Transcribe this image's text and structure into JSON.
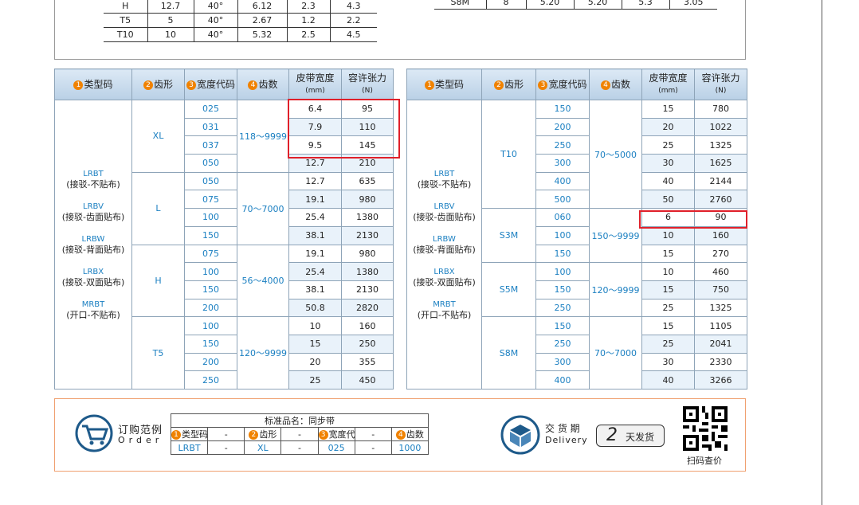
{
  "top_tables": [
    {
      "rows": [
        [
          "H",
          "12.7",
          "40°",
          "6.12",
          "2.3",
          "4.3"
        ],
        [
          "T5",
          "5",
          "40°",
          "2.67",
          "1.2",
          "2.2"
        ],
        [
          "T10",
          "10",
          "40°",
          "5.32",
          "2.5",
          "4.5"
        ]
      ]
    },
    {
      "rows": [
        [
          "S8M",
          "8",
          "5.20",
          "5.20",
          "5.3",
          "3.05"
        ]
      ]
    }
  ],
  "tables": [
    {
      "headers": [
        {
          "num": "1",
          "label": "类型码"
        },
        {
          "num": "2",
          "label": "齿形"
        },
        {
          "num": "3",
          "label": "宽度代码"
        },
        {
          "num": "4",
          "label": "齿数"
        },
        {
          "label": "皮带宽度",
          "unit": "(mm)"
        },
        {
          "label": "容许张力",
          "unit": "(N)"
        }
      ],
      "type_codes": [
        {
          "code": "LRBT",
          "desc": "(接驳-不贴布)"
        },
        {
          "code": "LRBV",
          "desc": "(接驳-齿面贴布)"
        },
        {
          "code": "LRBW",
          "desc": "(接驳-背面贴布)"
        },
        {
          "code": "LRBX",
          "desc": "(接驳-双面贴布)"
        },
        {
          "code": "MRBT",
          "desc": "(开口-不贴布)"
        }
      ],
      "groups": [
        {
          "tooth": "XL",
          "teeth": "118～9999",
          "rows": [
            [
              "025",
              "6.4",
              "95"
            ],
            [
              "031",
              "7.9",
              "110"
            ],
            [
              "037",
              "9.5",
              "145"
            ],
            [
              "050",
              "12.7",
              "210"
            ]
          ]
        },
        {
          "tooth": "L",
          "teeth": "70～7000",
          "rows": [
            [
              "050",
              "12.7",
              "635"
            ],
            [
              "075",
              "19.1",
              "980"
            ],
            [
              "100",
              "25.4",
              "1380"
            ],
            [
              "150",
              "38.1",
              "2130"
            ]
          ]
        },
        {
          "tooth": "H",
          "teeth": "56～4000",
          "rows": [
            [
              "075",
              "19.1",
              "980"
            ],
            [
              "100",
              "25.4",
              "1380"
            ],
            [
              "150",
              "38.1",
              "2130"
            ],
            [
              "200",
              "50.8",
              "2820"
            ]
          ]
        },
        {
          "tooth": "T5",
          "teeth": "120～9999",
          "rows": [
            [
              "100",
              "10",
              "160"
            ],
            [
              "150",
              "15",
              "250"
            ],
            [
              "200",
              "20",
              "355"
            ],
            [
              "250",
              "25",
              "450"
            ]
          ]
        }
      ]
    },
    {
      "headers": [
        {
          "num": "1",
          "label": "类型码"
        },
        {
          "num": "2",
          "label": "齿形"
        },
        {
          "num": "3",
          "label": "宽度代码"
        },
        {
          "num": "4",
          "label": "齿数"
        },
        {
          "label": "皮带宽度",
          "unit": "(mm)"
        },
        {
          "label": "容许张力",
          "unit": "(N)"
        }
      ],
      "type_codes": [
        {
          "code": "LRBT",
          "desc": "(接驳-不贴布)"
        },
        {
          "code": "LRBV",
          "desc": "(接驳-齿面贴布)"
        },
        {
          "code": "LRBW",
          "desc": "(接驳-背面贴布)"
        },
        {
          "code": "LRBX",
          "desc": "(接驳-双面贴布)"
        },
        {
          "code": "MRBT",
          "desc": "(开口-不贴布)"
        }
      ],
      "groups": [
        {
          "tooth": "T10",
          "teeth": "70～5000",
          "rows": [
            [
              "150",
              "15",
              "780"
            ],
            [
              "200",
              "20",
              "1022"
            ],
            [
              "250",
              "25",
              "1325"
            ],
            [
              "300",
              "30",
              "1625"
            ],
            [
              "400",
              "40",
              "2144"
            ],
            [
              "500",
              "50",
              "2760"
            ]
          ]
        },
        {
          "tooth": "S3M",
          "teeth": "150～9999",
          "rows": [
            [
              "060",
              "6",
              "90"
            ],
            [
              "100",
              "10",
              "160"
            ],
            [
              "150",
              "15",
              "270"
            ]
          ]
        },
        {
          "tooth": "S5M",
          "teeth": "120～9999",
          "rows": [
            [
              "100",
              "10",
              "460"
            ],
            [
              "150",
              "15",
              "750"
            ],
            [
              "250",
              "25",
              "1325"
            ]
          ]
        },
        {
          "tooth": "S8M",
          "teeth": "70～7000",
          "rows": [
            [
              "150",
              "15",
              "1105"
            ],
            [
              "250",
              "25",
              "2041"
            ],
            [
              "300",
              "30",
              "2330"
            ],
            [
              "400",
              "40",
              "3266"
            ]
          ]
        }
      ]
    }
  ],
  "order": {
    "title": "订购范例",
    "subtitle": "Order",
    "name": "标准品名：同步带",
    "separator": "-",
    "headers": [
      {
        "num": "1",
        "label": "类型码"
      },
      {
        "num": "2",
        "label": "齿形"
      },
      {
        "num": "3",
        "label": "宽度代码"
      },
      {
        "num": "4",
        "label": "齿数"
      }
    ],
    "values": [
      "LRBT",
      "XL",
      "025",
      "1000"
    ]
  },
  "delivery": {
    "title": "交 货 期",
    "subtitle": "Delivery",
    "days": "2",
    "unit": "天发货",
    "qr_label": "扫码查价"
  }
}
